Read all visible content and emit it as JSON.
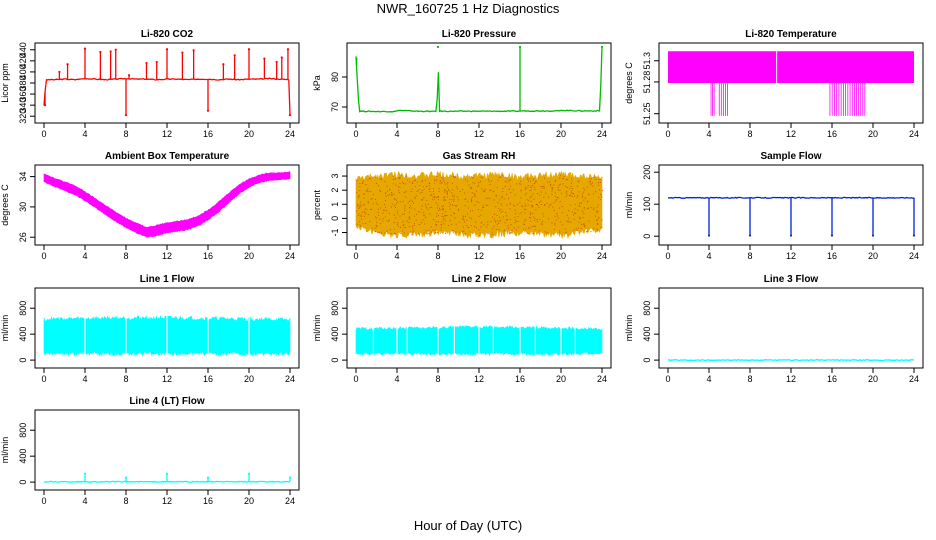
{
  "figure": {
    "title": "NWR_160725  1 Hz Diagnostics",
    "xlabel": "Hour of Day (UTC)"
  },
  "chart_data": [
    {
      "type": "line",
      "title": "Li-820 CO2",
      "ylabel": "Licor ppm",
      "xlim": [
        0,
        24
      ],
      "ylim": [
        315,
        445
      ],
      "xticks": [
        "0",
        "4",
        "8",
        "12",
        "16",
        "20",
        "24"
      ],
      "yticks": [
        "320",
        "340",
        "360",
        "380",
        "400",
        "420",
        "440"
      ],
      "color": "#ff0000",
      "series": [
        {
          "x": [
            0,
            0.2,
            0.4,
            1,
            2,
            3,
            4,
            5,
            6,
            7,
            8,
            9,
            10,
            11,
            12,
            13,
            14,
            15,
            16,
            17,
            18,
            19,
            20,
            21,
            22,
            23,
            23.9,
            24
          ],
          "y": [
            340,
            385,
            386,
            386,
            387,
            386,
            388,
            387,
            386,
            387,
            388,
            387,
            387,
            386,
            387,
            387,
            386,
            387,
            387,
            386,
            387,
            386,
            387,
            387,
            388,
            387,
            386,
            322
          ]
        }
      ],
      "spikes": [
        {
          "x": 0.1,
          "y": 340
        },
        {
          "x": 1.5,
          "y": 400
        },
        {
          "x": 2.3,
          "y": 414
        },
        {
          "x": 4.0,
          "y": 442
        },
        {
          "x": 5.5,
          "y": 436
        },
        {
          "x": 6.5,
          "y": 437
        },
        {
          "x": 7.0,
          "y": 440
        },
        {
          "x": 8.0,
          "y": 322
        },
        {
          "x": 8.3,
          "y": 394
        },
        {
          "x": 10.0,
          "y": 416
        },
        {
          "x": 11.0,
          "y": 418
        },
        {
          "x": 12.0,
          "y": 441
        },
        {
          "x": 13.5,
          "y": 435
        },
        {
          "x": 14.6,
          "y": 439
        },
        {
          "x": 16.0,
          "y": 330
        },
        {
          "x": 17.5,
          "y": 414
        },
        {
          "x": 18.6,
          "y": 430
        },
        {
          "x": 20.0,
          "y": 441
        },
        {
          "x": 21.5,
          "y": 424
        },
        {
          "x": 22.7,
          "y": 418
        },
        {
          "x": 23.2,
          "y": 426
        },
        {
          "x": 23.8,
          "y": 441
        },
        {
          "x": 24.0,
          "y": 322
        }
      ]
    },
    {
      "type": "line",
      "title": "Li-820 Pressure",
      "ylabel": "kPa",
      "xlim": [
        0,
        24
      ],
      "ylim": [
        66,
        90
      ],
      "xticks": [
        "0",
        "4",
        "8",
        "12",
        "16",
        "20",
        "24"
      ],
      "yticks": [
        "70",
        "80"
      ],
      "color": "#00bb00",
      "series": [
        {
          "x": [
            0,
            0.3,
            2,
            3.9,
            4.1,
            6,
            7.9,
            8,
            8.1,
            10,
            12,
            14,
            15.9,
            16.1,
            18,
            19.9,
            20.1,
            22,
            23.8,
            24
          ],
          "y": [
            87,
            68.6,
            68.5,
            68.5,
            68.9,
            68.6,
            68.5,
            90,
            68.6,
            68.6,
            68.6,
            68.6,
            68.6,
            68.7,
            68.7,
            68.7,
            68.9,
            68.7,
            68.7,
            90
          ]
        }
      ],
      "spikes": [
        {
          "x": 0.05,
          "y": 86
        },
        {
          "x": 8.0,
          "y": 90
        },
        {
          "x": 16.0,
          "y": 90
        },
        {
          "x": 24.0,
          "y": 90
        }
      ]
    },
    {
      "type": "line",
      "title": "Li-820 Temperature",
      "ylabel": "degrees C",
      "xlim": [
        0,
        24
      ],
      "ylim": [
        51.245,
        51.313
      ],
      "xticks": [
        "0",
        "4",
        "8",
        "12",
        "16",
        "20",
        "24"
      ],
      "yticks": [
        "51.25",
        "51.28",
        "51.3"
      ],
      "color": "#ff00ff",
      "bands": [
        {
          "x0": 0,
          "x1": 24,
          "ylow": 51.279,
          "yhigh": 51.309
        }
      ],
      "drops": [
        {
          "x0": 4.2,
          "x1": 4.5
        },
        {
          "x0": 5.0,
          "x1": 5.8
        },
        {
          "x0": 15.8,
          "x1": 18.2
        },
        {
          "x0": 18.4,
          "x1": 19.2
        }
      ],
      "drop_low": 51.248,
      "gaps": [
        {
          "x": 10.6
        }
      ]
    },
    {
      "type": "area",
      "title": "Ambient Box Temperature",
      "ylabel": "degrees C",
      "xlim": [
        0,
        24
      ],
      "ylim": [
        25.5,
        35
      ],
      "xticks": [
        "0",
        "4",
        "8",
        "12",
        "16",
        "20",
        "24"
      ],
      "yticks": [
        "26",
        "30",
        "34"
      ],
      "color": "#ff00ff",
      "series": [
        {
          "x": [
            0,
            1,
            2,
            3,
            4,
            5,
            6,
            7,
            8,
            9,
            10,
            11,
            12,
            13,
            14,
            15,
            16,
            17,
            18,
            19,
            20,
            21,
            22,
            23,
            24
          ],
          "ylow": [
            33.3,
            32.7,
            32.2,
            31.6,
            30.8,
            29.9,
            29.0,
            28.1,
            27.3,
            26.6,
            26.0,
            26.2,
            26.6,
            26.8,
            27.0,
            27.5,
            28.3,
            29.3,
            30.5,
            31.7,
            32.6,
            33.2,
            33.5,
            33.6,
            33.7
          ],
          "yhigh": [
            34.4,
            33.8,
            33.3,
            32.8,
            32.0,
            31.1,
            30.2,
            29.3,
            28.5,
            27.9,
            27.3,
            27.6,
            27.9,
            28.1,
            28.3,
            28.8,
            29.6,
            30.6,
            31.8,
            32.9,
            33.7,
            34.2,
            34.5,
            34.5,
            34.6
          ]
        }
      ]
    },
    {
      "type": "area",
      "title": "Gas Stream RH",
      "ylabel": "percent",
      "xlim": [
        0,
        24
      ],
      "ylim": [
        -1.6,
        3.5
      ],
      "xticks": [
        "0",
        "4",
        "8",
        "12",
        "16",
        "20",
        "24"
      ],
      "yticks": [
        "-1",
        "0",
        "1",
        "2",
        "3"
      ],
      "color": "#e6a800",
      "dot_color": "#cc5500",
      "series": [
        {
          "x": [
            0,
            2,
            4,
            6,
            8,
            10,
            12,
            14,
            16,
            18,
            20,
            22,
            24
          ],
          "ylow": [
            -0.6,
            -1.0,
            -1.2,
            -1.1,
            -1.0,
            -1.1,
            -1.2,
            -1.1,
            -1.0,
            -1.1,
            -1.2,
            -1.0,
            -0.8
          ],
          "yhigh": [
            2.8,
            3.0,
            3.1,
            3.0,
            3.1,
            3.0,
            3.0,
            3.1,
            2.9,
            3.0,
            3.1,
            3.0,
            2.9
          ]
        }
      ]
    },
    {
      "type": "line",
      "title": "Sample Flow",
      "ylabel": "ml/min",
      "xlim": [
        0,
        24
      ],
      "ylim": [
        -15,
        210
      ],
      "xticks": [
        "0",
        "4",
        "8",
        "12",
        "16",
        "20",
        "24"
      ],
      "yticks": [
        "0",
        "100",
        "200"
      ],
      "color": "#0022dd",
      "series": [
        {
          "x": [
            0,
            24
          ],
          "y": [
            120,
            120
          ]
        }
      ],
      "spikes": [
        {
          "x": 4.0,
          "y": 2
        },
        {
          "x": 8.0,
          "y": 2
        },
        {
          "x": 12.0,
          "y": 2
        },
        {
          "x": 16.0,
          "y": 2
        },
        {
          "x": 20.0,
          "y": 2
        },
        {
          "x": 24.0,
          "y": 2
        }
      ]
    },
    {
      "type": "area",
      "title": "Line 1 Flow",
      "ylabel": "ml/min",
      "xlim": [
        0,
        24
      ],
      "ylim": [
        -60,
        1050
      ],
      "xticks": [
        "0",
        "4",
        "8",
        "12",
        "16",
        "20",
        "24"
      ],
      "yticks": [
        "0",
        "400",
        "800"
      ],
      "color": "#00ffff",
      "series": [
        {
          "x": [
            0,
            4,
            8,
            12,
            16,
            20,
            24
          ],
          "ylow": [
            100,
            100,
            100,
            100,
            100,
            100,
            100
          ],
          "yhigh": [
            630,
            640,
            650,
            650,
            640,
            630,
            620
          ]
        }
      ],
      "gaps": [
        {
          "x": 4.0
        },
        {
          "x": 8.0
        },
        {
          "x": 12.0
        },
        {
          "x": 16.0
        },
        {
          "x": 20.0
        }
      ]
    },
    {
      "type": "area",
      "title": "Line 2 Flow",
      "ylabel": "ml/min",
      "xlim": [
        0,
        24
      ],
      "ylim": [
        -60,
        1050
      ],
      "xticks": [
        "0",
        "4",
        "8",
        "12",
        "16",
        "20",
        "24"
      ],
      "yticks": [
        "0",
        "400",
        "800"
      ],
      "color": "#00ffff",
      "series": [
        {
          "x": [
            0,
            4,
            8,
            12,
            16,
            20,
            24
          ],
          "ylow": [
            100,
            100,
            100,
            100,
            100,
            100,
            100
          ],
          "yhigh": [
            480,
            490,
            500,
            510,
            500,
            490,
            480
          ]
        }
      ],
      "gaps": [
        {
          "x": 1.7
        },
        {
          "x": 4.0
        },
        {
          "x": 5.0
        },
        {
          "x": 8.0
        },
        {
          "x": 9.6
        },
        {
          "x": 12.0
        },
        {
          "x": 13.4
        },
        {
          "x": 16.0
        },
        {
          "x": 17.5
        },
        {
          "x": 20.0
        },
        {
          "x": 21.4
        }
      ]
    },
    {
      "type": "line",
      "title": "Line 3 Flow",
      "ylabel": "ml/min",
      "xlim": [
        0,
        24
      ],
      "ylim": [
        -60,
        1050
      ],
      "xticks": [
        "0",
        "4",
        "8",
        "12",
        "16",
        "20",
        "24"
      ],
      "yticks": [
        "0",
        "400",
        "800"
      ],
      "color": "#00ffff",
      "series": [
        {
          "x": [
            0,
            24
          ],
          "y": [
            0,
            0
          ]
        }
      ]
    },
    {
      "type": "line",
      "title": "Line 4 (LT) Flow",
      "ylabel": "ml/min",
      "xlim": [
        0,
        24
      ],
      "ylim": [
        -60,
        1050
      ],
      "xticks": [
        "0",
        "4",
        "8",
        "12",
        "16",
        "20",
        "24"
      ],
      "yticks": [
        "0",
        "400",
        "800"
      ],
      "color": "#00ffff",
      "series": [
        {
          "x": [
            0,
            24
          ],
          "y": [
            5,
            5
          ]
        }
      ],
      "spikes": [
        {
          "x": 4.0,
          "y": 130
        },
        {
          "x": 8.0,
          "y": 70
        },
        {
          "x": 12.0,
          "y": 130
        },
        {
          "x": 16.0,
          "y": 70
        },
        {
          "x": 20.0,
          "y": 130
        },
        {
          "x": 24.0,
          "y": 70
        }
      ]
    }
  ]
}
